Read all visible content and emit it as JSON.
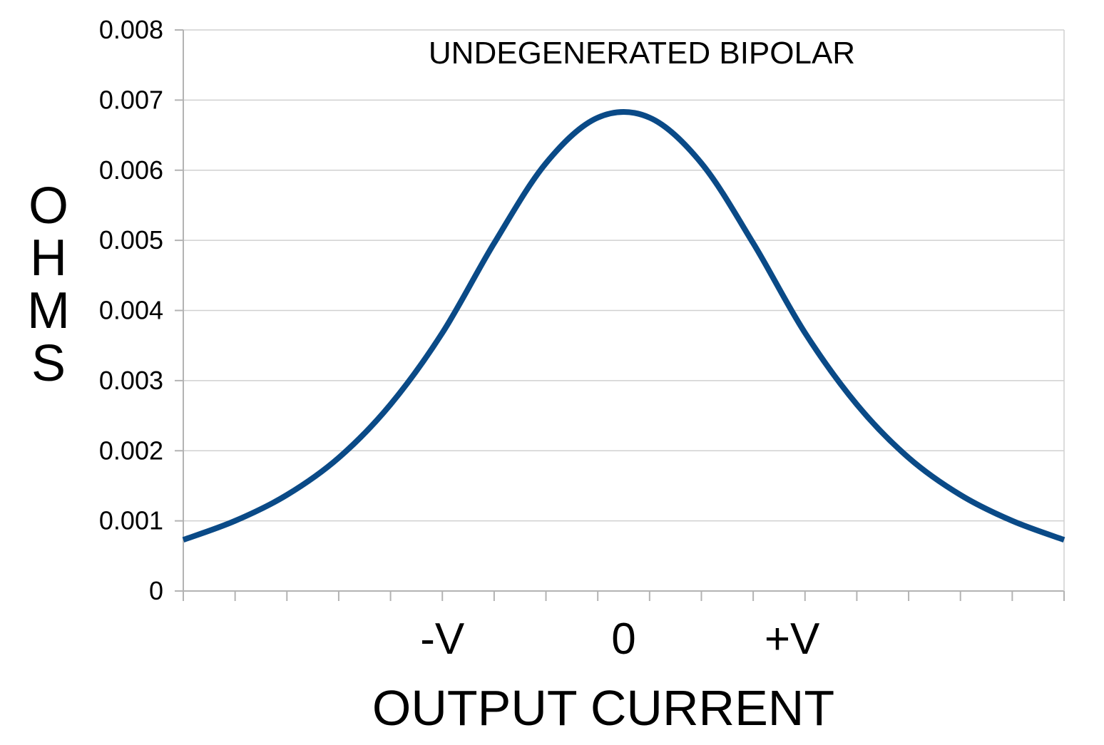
{
  "chart_data": {
    "type": "line",
    "title": "UNDEGENERATED BIPOLAR",
    "xlabel": "OUTPUT CURRENT",
    "ylabel_letters": [
      "O",
      "H",
      "M",
      "S"
    ],
    "ylim": [
      0,
      0.008
    ],
    "yticks": [
      "0",
      "0.001",
      "0.002",
      "0.003",
      "0.004",
      "0.005",
      "0.006",
      "0.007",
      "0.008"
    ],
    "xlim": [
      -3.4,
      3.4
    ],
    "xticks": [
      {
        "x": -1.4,
        "label": "-V"
      },
      {
        "x": 0,
        "label": "0"
      },
      {
        "x": 1.3,
        "label": "+V"
      }
    ],
    "series": [
      {
        "color": "#0a4a87",
        "points": [
          [
            -3.4,
            0.00073
          ],
          [
            -3.0,
            0.001
          ],
          [
            -2.6,
            0.00137
          ],
          [
            -2.2,
            0.0019
          ],
          [
            -1.8,
            0.00266
          ],
          [
            -1.4,
            0.00368
          ],
          [
            -1.0,
            0.00496
          ],
          [
            -0.6,
            0.0061
          ],
          [
            -0.2,
            0.00675
          ],
          [
            0.2,
            0.00675
          ],
          [
            0.6,
            0.0061
          ],
          [
            1.0,
            0.00496
          ],
          [
            1.4,
            0.00368
          ],
          [
            1.8,
            0.00266
          ],
          [
            2.2,
            0.0019
          ],
          [
            2.6,
            0.00137
          ],
          [
            3.0,
            0.001
          ],
          [
            3.4,
            0.00073
          ]
        ]
      }
    ],
    "grid": "horizontal",
    "legend": "none"
  }
}
